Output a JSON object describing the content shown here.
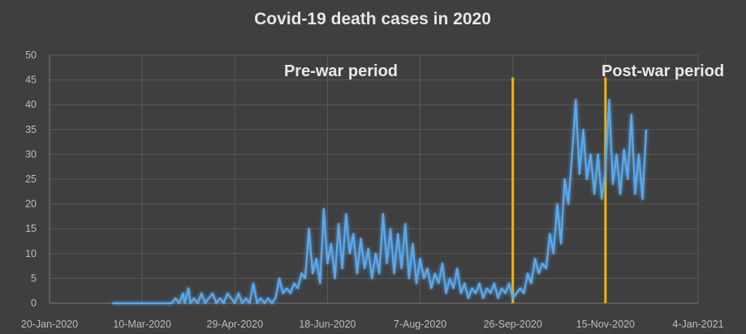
{
  "chart_data": {
    "type": "line",
    "title": "Covid-19 death cases in 2020",
    "xlabel": "",
    "ylabel": "",
    "ylim": [
      0,
      50
    ],
    "yticks": [
      0,
      5,
      10,
      15,
      20,
      25,
      30,
      35,
      40,
      45,
      50
    ],
    "xlim": [
      "2020-01-20",
      "2021-01-04"
    ],
    "xtick_labels": [
      "20-Jan-2020",
      "10-Mar-2020",
      "29-Apr-2020",
      "18-Jun-2020",
      "7-Aug-2020",
      "26-Sep-2020",
      "15-Nov-2020",
      "4-Jan-2021"
    ],
    "grid": true,
    "line_color": "#5aa9ee",
    "vline_color": "#f5b400",
    "vlines": [
      {
        "date": "2020-09-26",
        "label": "Pre-war period"
      },
      {
        "date": "2020-11-15",
        "label": "Post-war period"
      }
    ],
    "series": [
      {
        "values": [
          [
            "2020-02-23",
            0
          ],
          [
            "2020-03-01",
            0
          ],
          [
            "2020-03-10",
            0
          ],
          [
            "2020-03-20",
            0
          ],
          [
            "2020-03-26",
            0
          ],
          [
            "2020-03-28",
            1
          ],
          [
            "2020-03-30",
            0
          ],
          [
            "2020-04-01",
            2
          ],
          [
            "2020-04-02",
            0
          ],
          [
            "2020-04-04",
            3
          ],
          [
            "2020-04-05",
            0
          ],
          [
            "2020-04-07",
            1
          ],
          [
            "2020-04-09",
            0
          ],
          [
            "2020-04-11",
            2
          ],
          [
            "2020-04-13",
            0
          ],
          [
            "2020-04-15",
            1
          ],
          [
            "2020-04-17",
            2
          ],
          [
            "2020-04-19",
            0
          ],
          [
            "2020-04-21",
            1
          ],
          [
            "2020-04-23",
            0
          ],
          [
            "2020-04-25",
            2
          ],
          [
            "2020-04-27",
            1
          ],
          [
            "2020-04-29",
            0
          ],
          [
            "2020-05-01",
            2
          ],
          [
            "2020-05-03",
            0
          ],
          [
            "2020-05-05",
            1
          ],
          [
            "2020-05-07",
            0
          ],
          [
            "2020-05-09",
            4
          ],
          [
            "2020-05-11",
            0
          ],
          [
            "2020-05-13",
            1
          ],
          [
            "2020-05-15",
            0
          ],
          [
            "2020-05-17",
            1
          ],
          [
            "2020-05-19",
            0
          ],
          [
            "2020-05-21",
            1
          ],
          [
            "2020-05-23",
            5
          ],
          [
            "2020-05-25",
            2
          ],
          [
            "2020-05-27",
            3
          ],
          [
            "2020-05-29",
            2
          ],
          [
            "2020-05-31",
            4
          ],
          [
            "2020-06-02",
            3
          ],
          [
            "2020-06-04",
            6
          ],
          [
            "2020-06-06",
            5
          ],
          [
            "2020-06-08",
            15
          ],
          [
            "2020-06-10",
            6
          ],
          [
            "2020-06-12",
            9
          ],
          [
            "2020-06-14",
            4
          ],
          [
            "2020-06-16",
            19
          ],
          [
            "2020-06-18",
            8
          ],
          [
            "2020-06-20",
            12
          ],
          [
            "2020-06-22",
            5
          ],
          [
            "2020-06-24",
            16
          ],
          [
            "2020-06-26",
            7
          ],
          [
            "2020-06-28",
            18
          ],
          [
            "2020-06-30",
            10
          ],
          [
            "2020-07-02",
            14
          ],
          [
            "2020-07-04",
            6
          ],
          [
            "2020-07-06",
            13
          ],
          [
            "2020-07-08",
            7
          ],
          [
            "2020-07-10",
            11
          ],
          [
            "2020-07-12",
            5
          ],
          [
            "2020-07-14",
            10
          ],
          [
            "2020-07-16",
            6
          ],
          [
            "2020-07-18",
            18
          ],
          [
            "2020-07-20",
            8
          ],
          [
            "2020-07-22",
            15
          ],
          [
            "2020-07-24",
            6
          ],
          [
            "2020-07-26",
            14
          ],
          [
            "2020-07-28",
            7
          ],
          [
            "2020-07-30",
            16
          ],
          [
            "2020-08-01",
            5
          ],
          [
            "2020-08-03",
            12
          ],
          [
            "2020-08-05",
            4
          ],
          [
            "2020-08-07",
            9
          ],
          [
            "2020-08-09",
            5
          ],
          [
            "2020-08-11",
            7
          ],
          [
            "2020-08-13",
            3
          ],
          [
            "2020-08-15",
            6
          ],
          [
            "2020-08-17",
            4
          ],
          [
            "2020-08-19",
            8
          ],
          [
            "2020-08-21",
            2
          ],
          [
            "2020-08-23",
            5
          ],
          [
            "2020-08-25",
            3
          ],
          [
            "2020-08-27",
            7
          ],
          [
            "2020-08-29",
            2
          ],
          [
            "2020-08-31",
            4
          ],
          [
            "2020-09-02",
            1
          ],
          [
            "2020-09-04",
            3
          ],
          [
            "2020-09-06",
            2
          ],
          [
            "2020-09-08",
            4
          ],
          [
            "2020-09-10",
            1
          ],
          [
            "2020-09-12",
            3
          ],
          [
            "2020-09-14",
            2
          ],
          [
            "2020-09-16",
            4
          ],
          [
            "2020-09-18",
            1
          ],
          [
            "2020-09-20",
            3
          ],
          [
            "2020-09-22",
            2
          ],
          [
            "2020-09-24",
            4
          ],
          [
            "2020-09-26",
            1
          ],
          [
            "2020-09-28",
            2
          ],
          [
            "2020-09-30",
            3
          ],
          [
            "2020-10-02",
            2
          ],
          [
            "2020-10-04",
            6
          ],
          [
            "2020-10-06",
            4
          ],
          [
            "2020-10-08",
            9
          ],
          [
            "2020-10-10",
            6
          ],
          [
            "2020-10-12",
            8
          ],
          [
            "2020-10-14",
            7
          ],
          [
            "2020-10-16",
            14
          ],
          [
            "2020-10-18",
            10
          ],
          [
            "2020-10-20",
            20
          ],
          [
            "2020-10-22",
            12
          ],
          [
            "2020-10-24",
            25
          ],
          [
            "2020-10-26",
            20
          ],
          [
            "2020-10-28",
            30
          ],
          [
            "2020-10-30",
            41
          ],
          [
            "2020-11-01",
            26
          ],
          [
            "2020-11-03",
            35
          ],
          [
            "2020-11-05",
            25
          ],
          [
            "2020-11-07",
            30
          ],
          [
            "2020-11-09",
            22
          ],
          [
            "2020-11-11",
            30
          ],
          [
            "2020-11-13",
            21
          ],
          [
            "2020-11-15",
            27
          ],
          [
            "2020-11-17",
            41
          ],
          [
            "2020-11-19",
            24
          ],
          [
            "2020-11-21",
            30
          ],
          [
            "2020-11-23",
            22
          ],
          [
            "2020-11-25",
            31
          ],
          [
            "2020-11-27",
            25
          ],
          [
            "2020-11-29",
            38
          ],
          [
            "2020-12-01",
            22
          ],
          [
            "2020-12-03",
            30
          ],
          [
            "2020-12-05",
            21
          ],
          [
            "2020-12-07",
            35
          ]
        ]
      }
    ]
  }
}
